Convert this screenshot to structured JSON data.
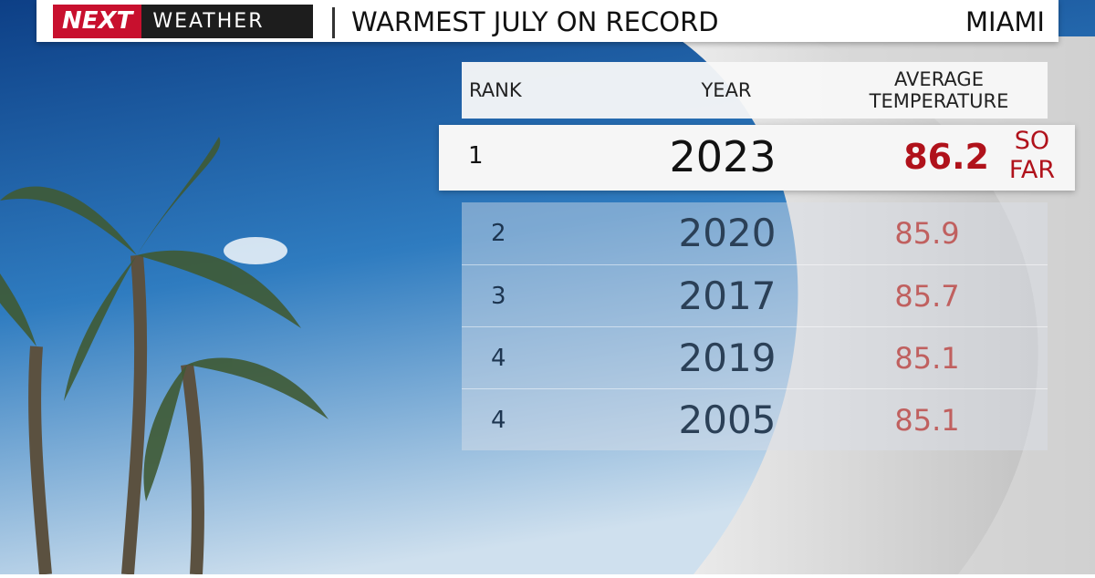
{
  "header": {
    "logo_next": "NEXT",
    "logo_weather": "WEATHER",
    "title": "WARMEST JULY ON RECORD",
    "location": "MIAMI"
  },
  "table": {
    "columns": [
      "RANK",
      "YEAR",
      "AVERAGE TEMPERATURE"
    ],
    "rows": [
      [
        1,
        2023,
        86.2
      ],
      [
        2,
        2020,
        85.9
      ],
      [
        3,
        2017,
        85.7
      ],
      [
        4,
        2019,
        85.1
      ],
      [
        4,
        2005,
        85.1
      ]
    ],
    "note": [
      "SO",
      "FAR"
    ]
  }
}
